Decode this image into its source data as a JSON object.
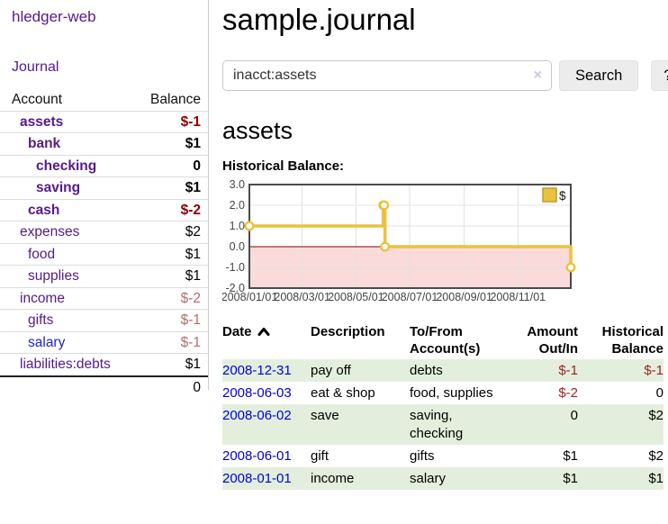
{
  "app": {
    "title": "hledger-web"
  },
  "colors": {
    "brand_purple": "#551a8b",
    "link_blue": "#0000dd",
    "negative_strong": "#8b0000",
    "negative_faint": "#b56a6a",
    "row_stripe_green": "#e3efdc",
    "accent_gold": "#e9c23f"
  },
  "sidebar": {
    "journal_link": "Journal",
    "headers": {
      "account": "Account",
      "balance": "Balance"
    },
    "accounts": [
      {
        "name": "assets",
        "balance": "$-1",
        "depth": 1,
        "current": true,
        "negative": "strong"
      },
      {
        "name": "bank",
        "balance": "$1",
        "depth": 2,
        "current": true,
        "negative": ""
      },
      {
        "name": "checking",
        "balance": "0",
        "depth": 3,
        "current": true,
        "negative": ""
      },
      {
        "name": "saving",
        "balance": "$1",
        "depth": 3,
        "current": true,
        "negative": ""
      },
      {
        "name": "cash",
        "balance": "$-2",
        "depth": 2,
        "current": true,
        "negative": "strong"
      },
      {
        "name": "expenses",
        "balance": "$2",
        "depth": 1,
        "current": false,
        "negative": ""
      },
      {
        "name": "food",
        "balance": "$1",
        "depth": 2,
        "current": false,
        "negative": ""
      },
      {
        "name": "supplies",
        "balance": "$1",
        "depth": 2,
        "current": false,
        "negative": ""
      },
      {
        "name": "income",
        "balance": "$-2",
        "depth": 1,
        "current": false,
        "negative": "faint"
      },
      {
        "name": "gifts",
        "balance": "$-1",
        "depth": 2,
        "current": false,
        "negative": "faint"
      },
      {
        "name": "salary",
        "balance": "$-1",
        "depth": 2,
        "current": false,
        "negative": "faint",
        "unvisited": true
      },
      {
        "name": "liabilities:debts",
        "balance": "$1",
        "depth": 1,
        "current": false,
        "negative": ""
      }
    ],
    "total": "0"
  },
  "main": {
    "title": "sample.journal",
    "search": {
      "value": "inacct:assets",
      "clear_icon": "×",
      "button_label": "Search",
      "help_label": "?"
    },
    "account_heading": "assets",
    "chart_label": "Historical Balance:"
  },
  "chart_data": {
    "type": "line",
    "style": "steps",
    "title": "Historical Balance:",
    "series": [
      {
        "name": "$",
        "points": [
          [
            "2008-01-01",
            1
          ],
          [
            "2008-06-01",
            2
          ],
          [
            "2008-06-02",
            2
          ],
          [
            "2008-06-03",
            0
          ],
          [
            "2008-12-31",
            -1
          ]
        ],
        "color": "#e9c23f"
      }
    ],
    "x_range": [
      "2008-01-01",
      "2008-12-31"
    ],
    "x_ticks": [
      "2008/01/01",
      "2008/03/01",
      "2008/05/01",
      "2008/07/01",
      "2008/09/01",
      "2008/11/01"
    ],
    "y_ticks": [
      "3.0",
      "2.0",
      "1.0",
      "0.0",
      "-1.0",
      "-2.0"
    ],
    "ylim": [
      -2,
      3
    ],
    "grid": true,
    "legend_position": "top-right",
    "negative_region_color": "#fbdada",
    "zero_line_color": "#8b0000",
    "grid_color": "#e2e2e2",
    "border_color": "#4a4a4a",
    "tick_label_color": "#444444"
  },
  "register": {
    "headers": [
      {
        "l1": "Date",
        "l2": ""
      },
      {
        "l1": "Description",
        "l2": ""
      },
      {
        "l1": "To/From",
        "l2": "Account(s)"
      },
      {
        "l1": "Amount",
        "l2": "Out/In"
      },
      {
        "l1": "Historical",
        "l2": "Balance"
      }
    ],
    "sort_indicator": "ascending",
    "rows": [
      {
        "date": "2008-12-31",
        "description": "pay off",
        "accounts": "debts",
        "amount": "$-1",
        "balance": "$-1",
        "amount_neg": true,
        "balance_neg": true
      },
      {
        "date": "2008-06-03",
        "description": "eat & shop",
        "accounts": "food, supplies",
        "amount": "$-2",
        "balance": "0",
        "amount_neg": true,
        "balance_neg": false
      },
      {
        "date": "2008-06-02",
        "description": "save",
        "accounts": "saving,\nchecking",
        "amount": "0",
        "balance": "$2",
        "amount_neg": false,
        "balance_neg": false
      },
      {
        "date": "2008-06-01",
        "description": "gift",
        "accounts": "gifts",
        "amount": "$1",
        "balance": "$2",
        "amount_neg": false,
        "balance_neg": false
      },
      {
        "date": "2008-01-01",
        "description": "income",
        "accounts": "salary",
        "amount": "$1",
        "balance": "$1",
        "amount_neg": false,
        "balance_neg": false
      }
    ]
  }
}
